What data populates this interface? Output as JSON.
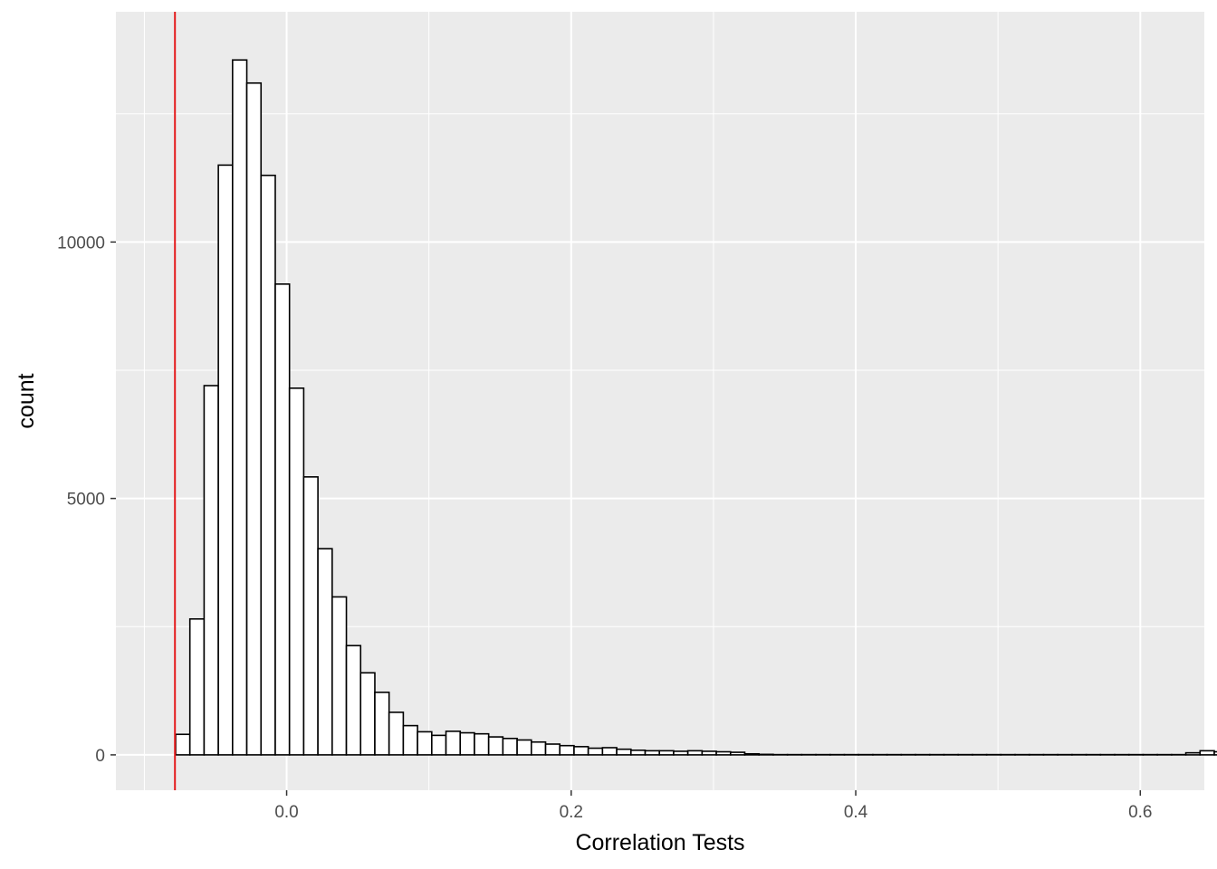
{
  "chart_data": {
    "type": "bar",
    "subtype": "histogram",
    "title": "",
    "xlabel": "Correlation Tests",
    "ylabel": "count",
    "xlim": [
      -0.12,
      0.645
    ],
    "ylim": [
      -690,
      14490
    ],
    "x_ticks": [
      {
        "value": 0.0,
        "label": "0.0"
      },
      {
        "value": 0.2,
        "label": "0.2"
      },
      {
        "value": 0.4,
        "label": "0.4"
      },
      {
        "value": 0.6,
        "label": "0.6"
      }
    ],
    "y_ticks": [
      {
        "value": 0,
        "label": "0"
      },
      {
        "value": 5000,
        "label": "5000"
      },
      {
        "value": 10000,
        "label": "10000"
      }
    ],
    "grid": true,
    "bin_start": -0.088,
    "bin_width": 0.01,
    "counts": [
      0,
      400,
      2650,
      7200,
      11500,
      13550,
      13100,
      11300,
      9180,
      7150,
      5420,
      4020,
      3080,
      2130,
      1600,
      1220,
      830,
      570,
      450,
      380,
      460,
      430,
      410,
      350,
      320,
      290,
      250,
      210,
      180,
      160,
      130,
      140,
      110,
      90,
      80,
      80,
      70,
      80,
      70,
      60,
      50,
      20,
      10,
      5,
      5,
      5,
      5,
      5,
      5,
      5,
      5,
      5,
      5,
      5,
      5,
      5,
      5,
      5,
      5,
      5,
      5,
      5,
      5,
      5,
      5,
      5,
      5,
      5,
      5,
      5,
      5,
      5,
      40,
      80,
      60,
      50,
      40,
      30,
      20,
      10,
      5,
      5,
      5,
      5,
      5
    ],
    "reference_line": {
      "x": -0.0785,
      "color": "#e41a1c"
    },
    "colors": {
      "panel_background": "#ebebeb",
      "grid_major": "#ffffff",
      "bar_fill": "#ffffff",
      "bar_outline": "#000000",
      "tick_label": "#4d4d4d"
    }
  }
}
